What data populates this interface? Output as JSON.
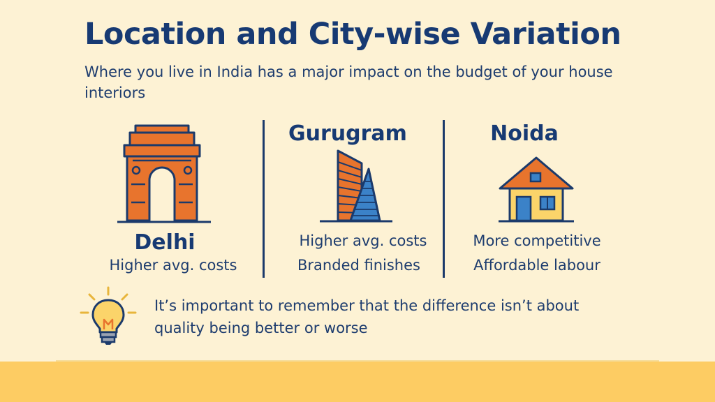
{
  "header": {
    "title": "Location and City-wise Variation",
    "subtitle": "Where you live in India has a major impact on the budget of your house interiors"
  },
  "cities": [
    {
      "name": "Delhi",
      "lines": [
        "Higher avg. costs"
      ],
      "icon": "india-gate-icon"
    },
    {
      "name": "Gurugram",
      "lines": [
        "Higher avg. costs",
        "Branded finishes"
      ],
      "icon": "skyscraper-icon"
    },
    {
      "name": "Noida",
      "lines": [
        "More competitive",
        "Affordable labour"
      ],
      "icon": "house-icon"
    }
  ],
  "tip": {
    "icon": "lightbulb-icon",
    "text": "It’s important to remember that the difference isn’t about quality being better or worse"
  },
  "colors": {
    "background": "#fdf2d4",
    "navy": "#173a73",
    "orange": "#e8742d",
    "blue": "#3b82c8",
    "yellow": "#fbd46a",
    "bottom_bar": "#fdcc63"
  }
}
